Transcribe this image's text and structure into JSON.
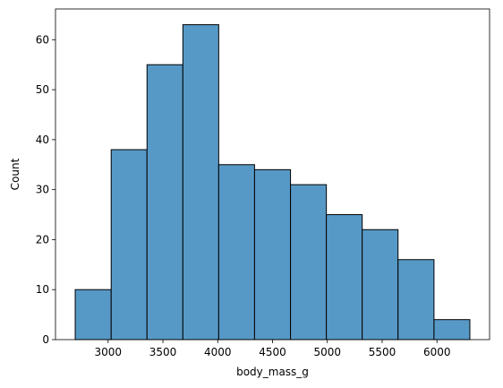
{
  "chart_data": {
    "type": "bar",
    "subtype": "histogram",
    "xlabel": "body_mass_g",
    "ylabel": "Count",
    "bins": [
      {
        "start": 2700,
        "end": 3028,
        "count": 10
      },
      {
        "start": 3028,
        "end": 3355,
        "count": 38
      },
      {
        "start": 3355,
        "end": 3682,
        "count": 55
      },
      {
        "start": 3682,
        "end": 4009,
        "count": 63
      },
      {
        "start": 4009,
        "end": 4336,
        "count": 35
      },
      {
        "start": 4336,
        "end": 4664,
        "count": 34
      },
      {
        "start": 4664,
        "end": 4991,
        "count": 31
      },
      {
        "start": 4991,
        "end": 5318,
        "count": 25
      },
      {
        "start": 5318,
        "end": 5645,
        "count": 22
      },
      {
        "start": 5645,
        "end": 5973,
        "count": 16
      },
      {
        "start": 5973,
        "end": 6300,
        "count": 4
      }
    ],
    "xlim": [
      2520,
      6480
    ],
    "ylim": [
      0,
      66.15
    ],
    "xticks": [
      3000,
      3500,
      4000,
      4500,
      5000,
      5500,
      6000
    ],
    "xtick_labels": [
      "3000",
      "3500",
      "4000",
      "4500",
      "5000",
      "5500",
      "6000"
    ],
    "yticks": [
      0,
      10,
      20,
      30,
      40,
      50,
      60
    ],
    "ytick_labels": [
      "0",
      "10",
      "20",
      "30",
      "40",
      "50",
      "60"
    ],
    "grid": false,
    "colors": {
      "bar_fill": "#5799c6",
      "bar_edge": "#000000"
    }
  }
}
